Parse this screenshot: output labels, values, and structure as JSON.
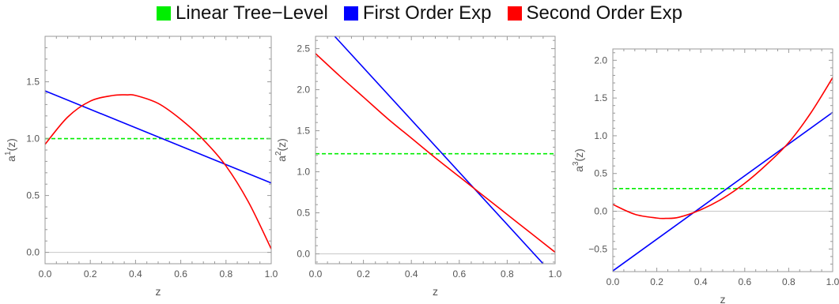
{
  "legend": [
    {
      "label": "Linear Tree−Level",
      "color": "#00ee00"
    },
    {
      "label": "First Order Exp",
      "color": "#0000ff"
    },
    {
      "label": "Second Order Exp",
      "color": "#ff0000"
    }
  ],
  "chart_data": [
    {
      "type": "line",
      "xlabel": "z",
      "ylabel": "a",
      "ylabel_sup": "1",
      "ylabel_suffix": "(z)",
      "xlim": [
        0,
        1
      ],
      "ylim": [
        -0.1,
        1.9
      ],
      "xticks": [
        "0.0",
        "0.2",
        "0.4",
        "0.6",
        "0.8",
        "1.0"
      ],
      "yticks": [
        "0.0",
        "0.5",
        "1.0",
        "1.5"
      ],
      "series": [
        {
          "legend_ref": 0,
          "style": "dashed",
          "x": [
            0,
            1
          ],
          "y": [
            1.0,
            1.0
          ]
        },
        {
          "legend_ref": 1,
          "style": "solid",
          "x": [
            0,
            1
          ],
          "y": [
            1.42,
            0.61
          ]
        },
        {
          "legend_ref": 2,
          "style": "solid",
          "x": [
            0,
            0.1,
            0.2,
            0.3,
            0.365,
            0.4,
            0.5,
            0.6,
            0.7,
            0.8,
            0.9,
            1.0
          ],
          "y": [
            0.95,
            1.19,
            1.33,
            1.38,
            1.385,
            1.38,
            1.31,
            1.17,
            0.99,
            0.76,
            0.44,
            0.03
          ]
        }
      ]
    },
    {
      "type": "line",
      "xlabel": "z",
      "ylabel": "a",
      "ylabel_sup": "2",
      "ylabel_suffix": "(z)",
      "xlim": [
        0,
        1
      ],
      "ylim": [
        -0.12,
        2.65
      ],
      "xticks": [
        "0.0",
        "0.2",
        "0.4",
        "0.6",
        "0.8",
        "1.0"
      ],
      "yticks": [
        "0.0",
        "0.5",
        "1.0",
        "1.5",
        "2.0",
        "2.5"
      ],
      "series": [
        {
          "legend_ref": 0,
          "style": "dashed",
          "x": [
            0,
            1
          ],
          "y": [
            1.22,
            1.22
          ]
        },
        {
          "legend_ref": 1,
          "style": "solid",
          "x": [
            0.08,
            0.95
          ],
          "y": [
            2.65,
            -0.12
          ]
        },
        {
          "legend_ref": 2,
          "style": "solid",
          "x": [
            0,
            0.1,
            0.2,
            0.3,
            0.4,
            0.5,
            0.6,
            0.7,
            0.8,
            0.9,
            1.0
          ],
          "y": [
            2.44,
            2.17,
            1.91,
            1.65,
            1.41,
            1.17,
            0.94,
            0.71,
            0.48,
            0.25,
            0.02
          ]
        }
      ]
    },
    {
      "type": "line",
      "xlabel": "z",
      "ylabel": "a",
      "ylabel_sup": "3",
      "ylabel_suffix": "(z)",
      "xlim": [
        0,
        1
      ],
      "ylim": [
        -0.8,
        2.15
      ],
      "xticks": [
        "0.0",
        "0.2",
        "0.4",
        "0.6",
        "0.8",
        "1.0"
      ],
      "yticks": [
        "−0.5",
        "0.0",
        "0.5",
        "1.0",
        "1.5",
        "2.0"
      ],
      "ytick_values": [
        -0.5,
        0,
        0.5,
        1.0,
        1.5,
        2.0
      ],
      "series": [
        {
          "legend_ref": 0,
          "style": "dashed",
          "x": [
            0,
            1
          ],
          "y": [
            0.3,
            0.3
          ]
        },
        {
          "legend_ref": 1,
          "style": "solid",
          "x": [
            0,
            1
          ],
          "y": [
            -0.79,
            1.31
          ]
        },
        {
          "legend_ref": 2,
          "style": "solid",
          "x": [
            0,
            0.1,
            0.2,
            0.24,
            0.3,
            0.4,
            0.5,
            0.6,
            0.7,
            0.8,
            0.9,
            1.0
          ],
          "y": [
            0.09,
            -0.04,
            -0.09,
            -0.095,
            -0.08,
            0.02,
            0.17,
            0.37,
            0.62,
            0.91,
            1.3,
            1.77
          ]
        }
      ]
    }
  ]
}
